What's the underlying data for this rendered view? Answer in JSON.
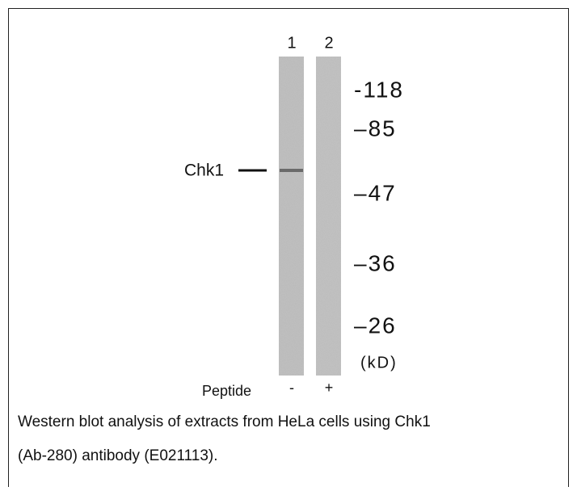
{
  "lanes": {
    "numbers": [
      "1",
      "2"
    ],
    "peptide_label": "Peptide",
    "peptide_signs": [
      "-",
      "+"
    ]
  },
  "protein_label": "Chk1",
  "markers": [
    "-118",
    "–85",
    "–47",
    "–36",
    "–26"
  ],
  "marker_unit": "(kD)",
  "caption": {
    "lines": [
      "Western blot analysis of extracts from HeLa cells using Chk1",
      "(Ab-280) antibody (E021113)."
    ]
  }
}
